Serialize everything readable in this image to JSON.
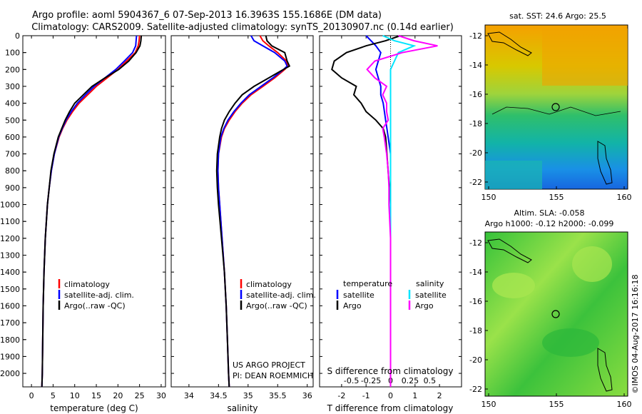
{
  "header": {
    "title_line1": "Argo profile: aoml 5904367_6 07-Sep-2013 16.3963S 155.1686E (DM data)",
    "title_line2": "Climatology: CARS2009. Satellite-adjusted climatology: synTS_20130907.nc (0.14d earlier)"
  },
  "colors": {
    "climatology": "#ff0000",
    "satellite": "#0000ff",
    "argo": "#000000",
    "argo_salinity": "#ff00ff",
    "satellite_salinity": "#00e5ff"
  },
  "depth_axis": {
    "ticks": [
      0,
      100,
      200,
      300,
      400,
      500,
      600,
      700,
      800,
      900,
      1000,
      1100,
      1200,
      1300,
      1400,
      1500,
      1600,
      1700,
      1800,
      1900,
      2000
    ],
    "ylim": [
      0,
      2080
    ]
  },
  "chart_data": [
    {
      "type": "line",
      "id": "temperature",
      "xlabel": "temperature (deg C)",
      "xlim": [
        -2,
        31
      ],
      "xticks": [
        0,
        5,
        10,
        15,
        20,
        25,
        30
      ],
      "legend": [
        "climatology",
        "satellite-adj. clim.",
        "Argo(..raw -QC)"
      ],
      "depth": [
        0,
        30,
        60,
        100,
        150,
        200,
        250,
        300,
        350,
        400,
        450,
        500,
        550,
        600,
        700,
        800,
        900,
        1000,
        1200,
        1400,
        1600,
        1800,
        2000,
        2080
      ],
      "series": [
        {
          "name": "climatology",
          "values": [
            25.0,
            24.9,
            24.7,
            24.0,
            22.0,
            20.0,
            17.5,
            15.0,
            13.0,
            11.0,
            9.5,
            8.2,
            7.2,
            6.4,
            5.3,
            4.6,
            4.1,
            3.7,
            3.2,
            2.9,
            2.7,
            2.6,
            2.5,
            2.4
          ]
        },
        {
          "name": "satellite-adj. clim.",
          "values": [
            24.3,
            24.2,
            24.1,
            23.4,
            21.5,
            19.5,
            17.0,
            14.5,
            12.5,
            10.6,
            9.2,
            8.0,
            7.1,
            6.3,
            5.3,
            4.6,
            4.1,
            3.7,
            3.2,
            2.9,
            2.7,
            2.6,
            2.5,
            2.4
          ]
        },
        {
          "name": "Argo",
          "values": [
            25.4,
            25.3,
            25.1,
            24.2,
            22.5,
            20.2,
            17.0,
            14.0,
            12.0,
            10.0,
            8.8,
            7.8,
            7.0,
            6.2,
            5.2,
            4.5,
            4.1,
            3.7,
            3.2,
            2.9,
            2.7,
            2.6,
            2.5,
            2.4
          ]
        }
      ]
    },
    {
      "type": "line",
      "id": "salinity",
      "xlabel": "salinity",
      "xlim": [
        33.7,
        36.1
      ],
      "xticks": [
        34,
        34.5,
        35,
        35.5,
        36
      ],
      "xticklabels": [
        "34",
        "34.5",
        "35",
        "35.5",
        "36"
      ],
      "legend": [
        "climatology",
        "satellite-adj. clim.",
        "Argo(..raw -QC)"
      ],
      "annotation_line1": "US ARGO PROJECT",
      "annotation_line2": "PI: DEAN ROEMMICH",
      "depth": [
        0,
        30,
        60,
        100,
        150,
        180,
        200,
        250,
        300,
        350,
        400,
        450,
        500,
        550,
        600,
        700,
        800,
        900,
        1000,
        1200,
        1400,
        1600,
        1800,
        2000,
        2080
      ],
      "series": [
        {
          "name": "climatology",
          "values": [
            35.2,
            35.25,
            35.35,
            35.5,
            35.65,
            35.67,
            35.62,
            35.45,
            35.25,
            35.05,
            34.9,
            34.78,
            34.68,
            34.6,
            34.55,
            34.5,
            34.49,
            34.5,
            34.52,
            34.56,
            34.6,
            34.63,
            34.65,
            34.67,
            34.68
          ]
        },
        {
          "name": "satellite-adj. clim.",
          "values": [
            35.05,
            35.1,
            35.25,
            35.45,
            35.62,
            35.66,
            35.6,
            35.42,
            35.22,
            35.02,
            34.88,
            34.76,
            34.66,
            34.59,
            34.54,
            34.5,
            34.49,
            34.5,
            34.52,
            34.56,
            34.6,
            34.63,
            34.65,
            34.67,
            34.68
          ]
        },
        {
          "name": "Argo",
          "values": [
            35.3,
            35.32,
            35.4,
            35.62,
            35.66,
            35.7,
            35.6,
            35.35,
            35.1,
            34.9,
            34.78,
            34.68,
            34.6,
            34.55,
            34.52,
            34.48,
            34.47,
            34.48,
            34.5,
            34.55,
            34.6,
            34.63,
            34.65,
            34.67,
            34.68
          ]
        }
      ]
    },
    {
      "type": "line",
      "id": "difference",
      "xlabel": "T difference from climatology",
      "xlabel_top": "S difference from climatology",
      "xlim": [
        -2.9,
        2.9
      ],
      "xticks": [
        -2,
        -1,
        0,
        1,
        2
      ],
      "xticklabels": [
        "-2",
        "-1",
        "0",
        "1",
        "2"
      ],
      "sticks": [
        -0.5,
        -0.25,
        0,
        0.25,
        0.5
      ],
      "sticklabels": [
        "-0.5",
        "-0.25",
        "0",
        "0.25",
        "0.5"
      ],
      "legend_temperature": "temperature",
      "legend_salinity": "salinity",
      "legend_satellite": "satellite",
      "legend_argo": "Argo",
      "depth": [
        0,
        30,
        60,
        100,
        150,
        200,
        250,
        300,
        350,
        400,
        450,
        500,
        550,
        600,
        700,
        800,
        900,
        1000,
        1200,
        1400,
        1600,
        1800,
        2000,
        2080
      ],
      "series": [
        {
          "name": "T satellite",
          "values": [
            -1.0,
            -0.8,
            -0.6,
            -0.4,
            -0.5,
            -0.6,
            -0.5,
            -0.4,
            -0.4,
            -0.3,
            -0.25,
            -0.2,
            -0.15,
            -0.1,
            0,
            0,
            0,
            0,
            0,
            0,
            0,
            0,
            0,
            0
          ]
        },
        {
          "name": "T Argo",
          "values": [
            0.4,
            -0.2,
            -1.0,
            -1.8,
            -2.3,
            -2.4,
            -2.0,
            -1.4,
            -1.5,
            -1.2,
            -1.0,
            -0.6,
            -0.3,
            -0.2,
            -0.15,
            -0.1,
            -0.05,
            0,
            0,
            0,
            0,
            0,
            0,
            0
          ]
        },
        {
          "name": "S satellite",
          "values": [
            -0.1,
            0.05,
            0.3,
            0.1,
            0.05,
            0,
            0,
            0,
            0,
            0,
            0,
            0,
            0,
            0,
            0,
            0,
            0,
            0,
            0,
            0,
            0,
            0,
            0,
            0
          ]
        },
        {
          "name": "S Argo",
          "values": [
            0.1,
            0.3,
            0.6,
            0.15,
            -0.2,
            -0.3,
            -0.2,
            -0.05,
            -0.1,
            -0.05,
            -0.05,
            -0.03,
            -0.1,
            -0.08,
            -0.05,
            -0.03,
            -0.02,
            -0.02,
            0,
            0,
            0,
            0,
            0,
            0
          ]
        }
      ]
    }
  ],
  "maps": {
    "sst": {
      "title": "sat. SST: 24.6  Argo: 25.5",
      "yticklabels": [
        "-12",
        "-14",
        "-16",
        "-18",
        "-20",
        "-22"
      ],
      "xticklabels": [
        "150",
        "155",
        "160"
      ]
    },
    "sla": {
      "title_line1": "Altim. SLA: -0.058",
      "title_line2": "Argo h1000: -0.12 h2000: -0.099",
      "yticklabels": [
        "-12",
        "-14",
        "-16",
        "-18",
        "-20",
        "-22"
      ],
      "xticklabels": [
        "150",
        "155",
        "160"
      ]
    },
    "credit": "©IMOS 04-Aug-2017 16:16:18"
  }
}
